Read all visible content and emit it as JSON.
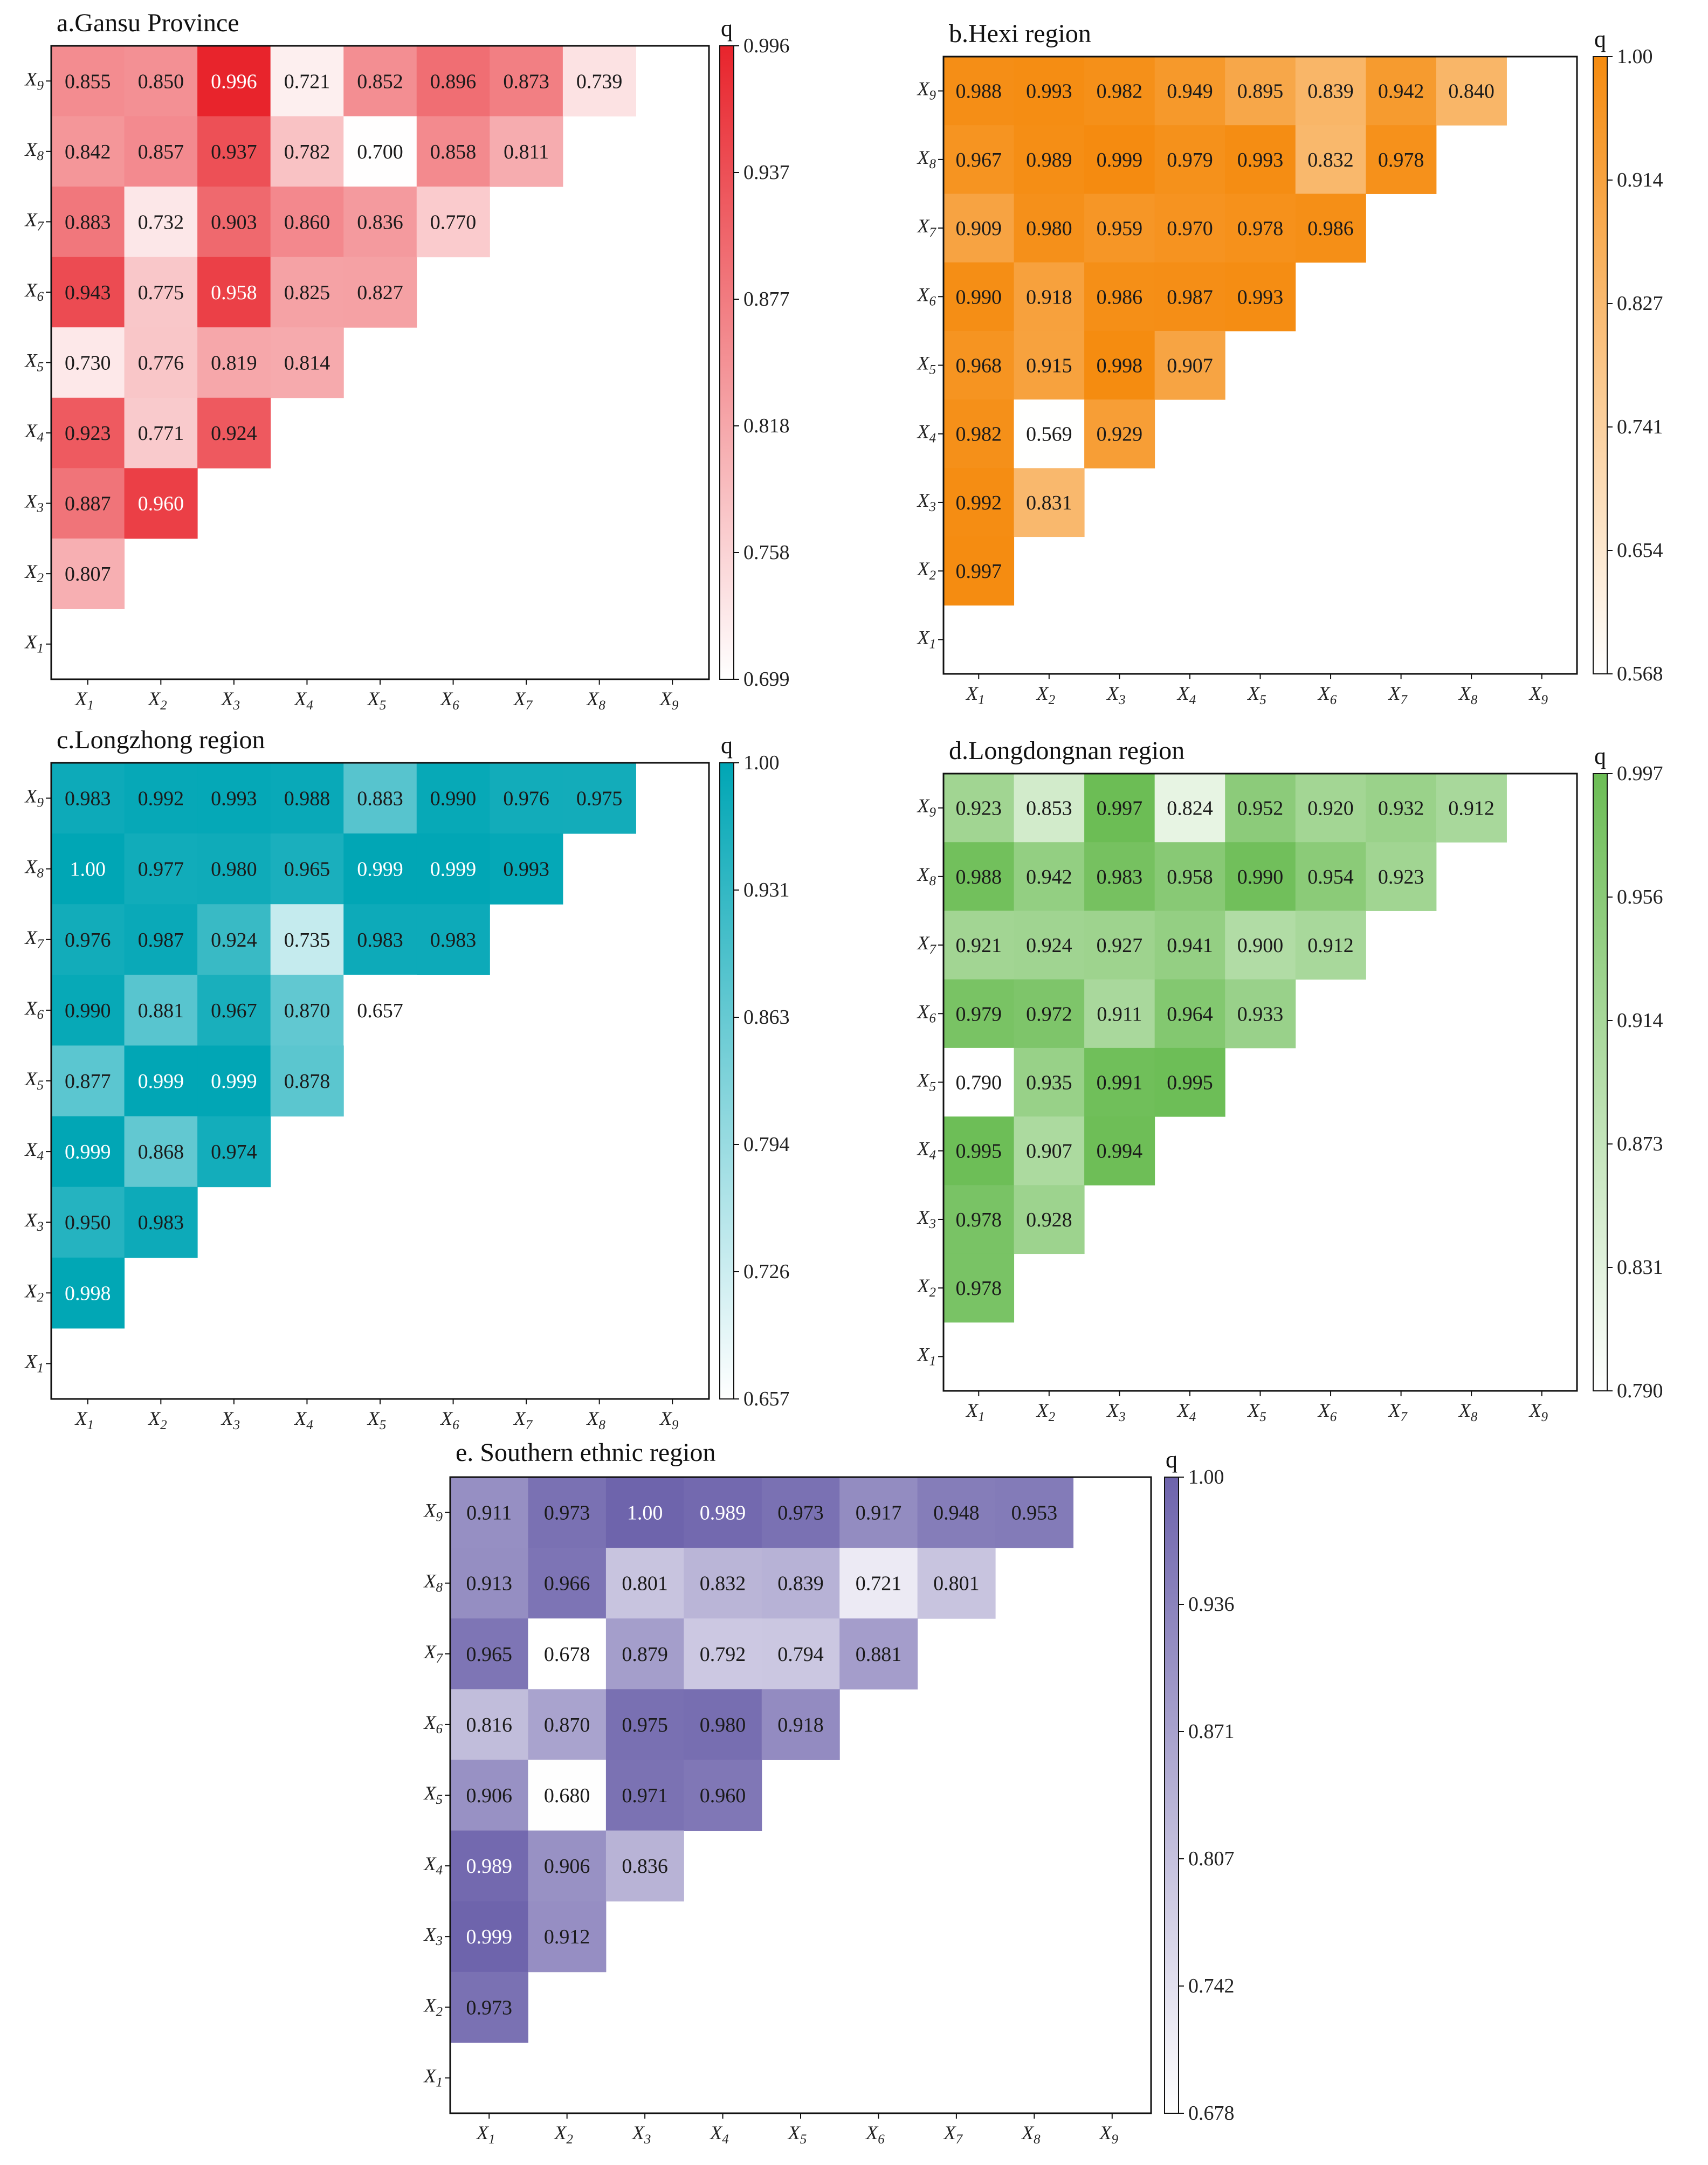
{
  "chart_data": [
    {
      "type": "heatmap",
      "title": "a.Gansu Province",
      "colorbar_label": "q",
      "cbar_ticks": [
        "0.996",
        "0.937",
        "0.877",
        "0.818",
        "0.758",
        "0.699"
      ],
      "vmin": 0.699,
      "vmax": 0.996,
      "color_low": "#ffffff",
      "color_high": "#e8242c",
      "row_labels": [
        "X9",
        "X8",
        "X7",
        "X6",
        "X5",
        "X4",
        "X3",
        "X2",
        "X1"
      ],
      "col_labels": [
        "X1",
        "X2",
        "X3",
        "X4",
        "X5",
        "X6",
        "X7",
        "X8",
        "X9"
      ],
      "values": [
        [
          "0.855",
          "0.850",
          "0.996",
          "0.721",
          "0.852",
          "0.896",
          "0.873",
          "0.739"
        ],
        [
          "0.842",
          "0.857",
          "0.937",
          "0.782",
          "0.700",
          "0.858",
          "0.811"
        ],
        [
          "0.883",
          "0.732",
          "0.903",
          "0.860",
          "0.836",
          "0.770"
        ],
        [
          "0.943",
          "0.775",
          "0.958",
          "0.825",
          "0.827"
        ],
        [
          "0.730",
          "0.776",
          "0.819",
          "0.814"
        ],
        [
          "0.923",
          "0.771",
          "0.924"
        ],
        [
          "0.887",
          "0.960"
        ],
        [
          "0.807"
        ],
        []
      ]
    },
    {
      "type": "heatmap",
      "title": "b.Hexi region",
      "colorbar_label": "q",
      "cbar_ticks": [
        "1.00",
        "0.914",
        "0.827",
        "0.741",
        "0.654",
        "0.568"
      ],
      "vmin": 0.568,
      "vmax": 1.0,
      "color_low": "#ffffff",
      "color_high": "#f58b0f",
      "row_labels": [
        "X9",
        "X8",
        "X7",
        "X6",
        "X5",
        "X4",
        "X3",
        "X2",
        "X1"
      ],
      "col_labels": [
        "X1",
        "X2",
        "X3",
        "X4",
        "X5",
        "X6",
        "X7",
        "X8",
        "X9"
      ],
      "values": [
        [
          "0.988",
          "0.993",
          "0.982",
          "0.949",
          "0.895",
          "0.839",
          "0.942",
          "0.840"
        ],
        [
          "0.967",
          "0.989",
          "0.999",
          "0.979",
          "0.993",
          "0.832",
          "0.978"
        ],
        [
          "0.909",
          "0.980",
          "0.959",
          "0.970",
          "0.978",
          "0.986"
        ],
        [
          "0.990",
          "0.918",
          "0.986",
          "0.987",
          "0.993"
        ],
        [
          "0.968",
          "0.915",
          "0.998",
          "0.907"
        ],
        [
          "0.982",
          "0.569",
          "0.929"
        ],
        [
          "0.992",
          "0.831"
        ],
        [
          "0.997"
        ],
        []
      ]
    },
    {
      "type": "heatmap",
      "title": "c.Longzhong region",
      "colorbar_label": "q",
      "cbar_ticks": [
        "1.00",
        "0.931",
        "0.863",
        "0.794",
        "0.726",
        "0.657"
      ],
      "vmin": 0.657,
      "vmax": 1.0,
      "color_low": "#ffffff",
      "color_high": "#00a6b5",
      "row_labels": [
        "X9",
        "X8",
        "X7",
        "X6",
        "X5",
        "X4",
        "X3",
        "X2",
        "X1"
      ],
      "col_labels": [
        "X1",
        "X2",
        "X3",
        "X4",
        "X5",
        "X6",
        "X7",
        "X8",
        "X9"
      ],
      "values": [
        [
          "0.983",
          "0.992",
          "0.993",
          "0.988",
          "0.883",
          "0.990",
          "0.976",
          "0.975"
        ],
        [
          "1.00",
          "0.977",
          "0.980",
          "0.965",
          "0.999",
          "0.999",
          "0.993"
        ],
        [
          "0.976",
          "0.987",
          "0.924",
          "0.735",
          "0.983",
          "0.983"
        ],
        [
          "0.990",
          "0.881",
          "0.967",
          "0.870",
          "0.657"
        ],
        [
          "0.877",
          "0.999",
          "0.999",
          "0.878"
        ],
        [
          "0.999",
          "0.868",
          "0.974"
        ],
        [
          "0.950",
          "0.983"
        ],
        [
          "0.998"
        ],
        []
      ]
    },
    {
      "type": "heatmap",
      "title": "d.Longdongnan region",
      "colorbar_label": "q",
      "cbar_ticks": [
        "0.997",
        "0.956",
        "0.914",
        "0.873",
        "0.831",
        "0.790"
      ],
      "vmin": 0.79,
      "vmax": 0.997,
      "color_low": "#ffffff",
      "color_high": "#6cbd55",
      "row_labels": [
        "X9",
        "X8",
        "X7",
        "X6",
        "X5",
        "X4",
        "X3",
        "X2",
        "X1"
      ],
      "col_labels": [
        "X1",
        "X2",
        "X3",
        "X4",
        "X5",
        "X6",
        "X7",
        "X8",
        "X9"
      ],
      "values": [
        [
          "0.923",
          "0.853",
          "0.997",
          "0.824",
          "0.952",
          "0.920",
          "0.932",
          "0.912"
        ],
        [
          "0.988",
          "0.942",
          "0.983",
          "0.958",
          "0.990",
          "0.954",
          "0.923"
        ],
        [
          "0.921",
          "0.924",
          "0.927",
          "0.941",
          "0.900",
          "0.912"
        ],
        [
          "0.979",
          "0.972",
          "0.911",
          "0.964",
          "0.933"
        ],
        [
          "0.790",
          "0.935",
          "0.991",
          "0.995"
        ],
        [
          "0.995",
          "0.907",
          "0.994"
        ],
        [
          "0.978",
          "0.928"
        ],
        [
          "0.978"
        ],
        []
      ]
    },
    {
      "type": "heatmap",
      "title": "e. Southern ethnic region",
      "colorbar_label": "q",
      "cbar_ticks": [
        "1.00",
        "0.936",
        "0.871",
        "0.807",
        "0.742",
        "0.678"
      ],
      "vmin": 0.678,
      "vmax": 1.0,
      "color_low": "#ffffff",
      "color_high": "#6e64ac",
      "row_labels": [
        "X9",
        "X8",
        "X7",
        "X6",
        "X5",
        "X4",
        "X3",
        "X2",
        "X1"
      ],
      "col_labels": [
        "X1",
        "X2",
        "X3",
        "X4",
        "X5",
        "X6",
        "X7",
        "X8",
        "X9"
      ],
      "values": [
        [
          "0.911",
          "0.973",
          "1.00",
          "0.989",
          "0.973",
          "0.917",
          "0.948",
          "0.953"
        ],
        [
          "0.913",
          "0.966",
          "0.801",
          "0.832",
          "0.839",
          "0.721",
          "0.801"
        ],
        [
          "0.965",
          "0.678",
          "0.879",
          "0.792",
          "0.794",
          "0.881"
        ],
        [
          "0.816",
          "0.870",
          "0.975",
          "0.980",
          "0.918"
        ],
        [
          "0.906",
          "0.680",
          "0.971",
          "0.960"
        ],
        [
          "0.989",
          "0.906",
          "0.836"
        ],
        [
          "0.999",
          "0.912"
        ],
        [
          "0.973"
        ],
        []
      ]
    }
  ]
}
